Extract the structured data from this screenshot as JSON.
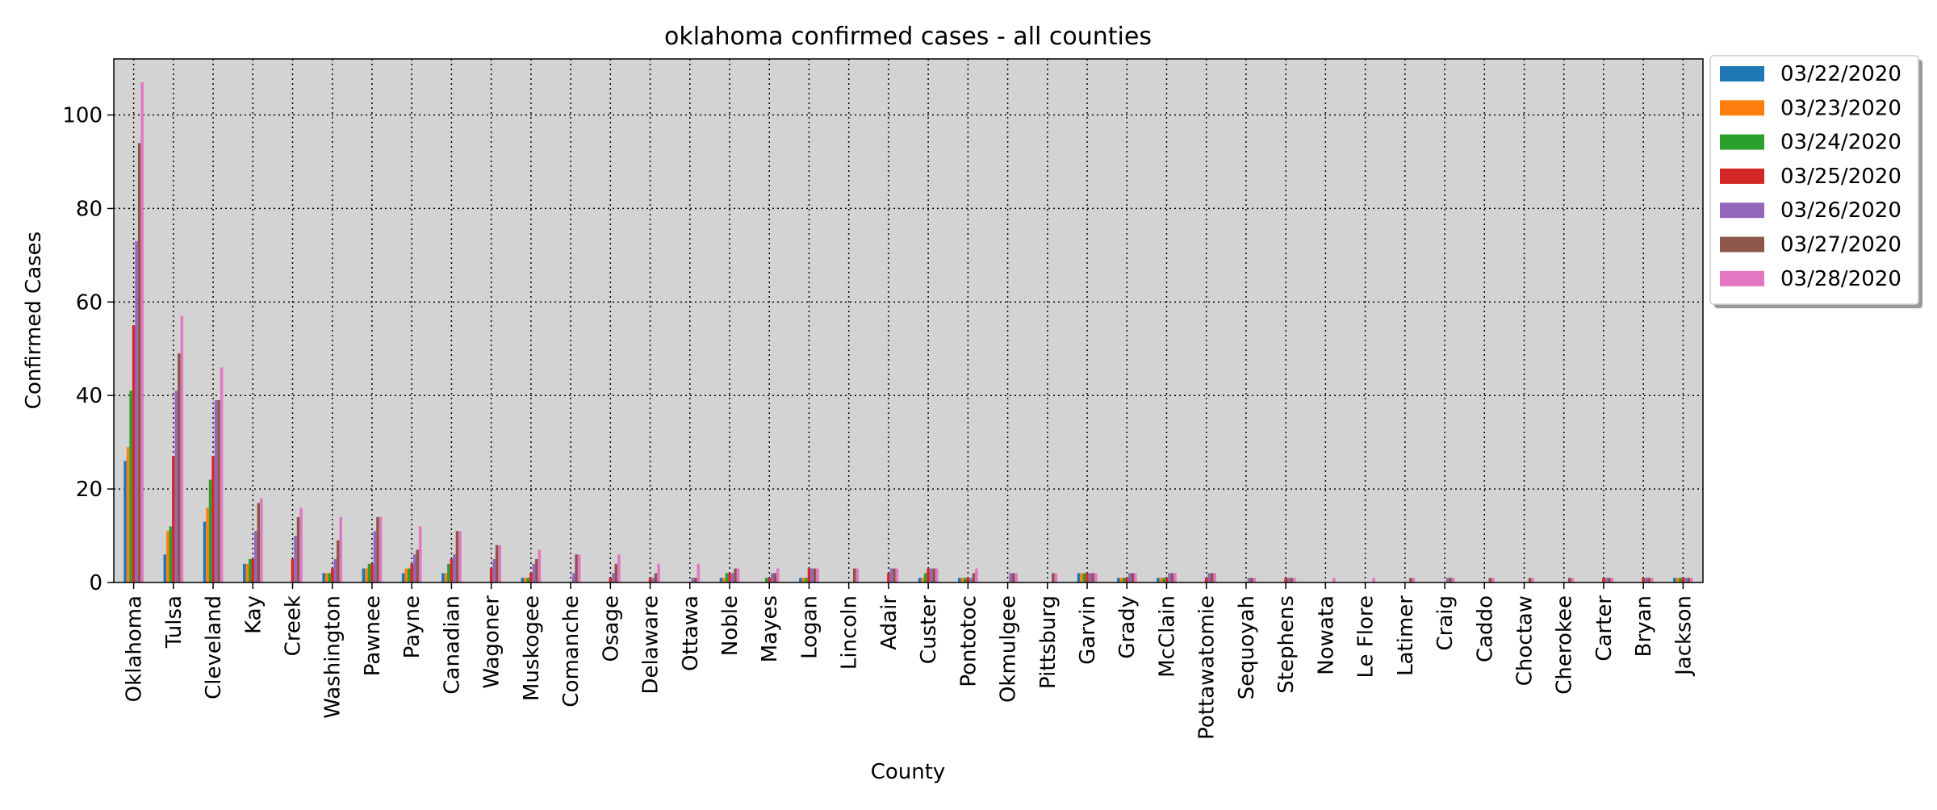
{
  "chart_data": {
    "type": "bar",
    "title": "oklahoma confirmed cases - all counties",
    "xlabel": "County",
    "ylabel": "Confirmed Cases",
    "ylim": [
      0,
      112
    ],
    "yticks": [
      0,
      20,
      40,
      60,
      80,
      100
    ],
    "grid": true,
    "legend_position": "outside-top-right",
    "categories": [
      "Oklahoma",
      "Tulsa",
      "Cleveland",
      "Kay",
      "Creek",
      "Washington",
      "Pawnee",
      "Payne",
      "Canadian",
      "Wagoner",
      "Muskogee",
      "Comanche",
      "Osage",
      "Delaware",
      "Ottawa",
      "Noble",
      "Mayes",
      "Logan",
      "Lincoln",
      "Adair",
      "Custer",
      "Pontotoc",
      "Okmulgee",
      "Pittsburg",
      "Garvin",
      "Grady",
      "McClain",
      "Pottawatomie",
      "Sequoyah",
      "Stephens",
      "Nowata",
      "Le Flore",
      "Latimer",
      "Craig",
      "Caddo",
      "Choctaw",
      "Cherokee",
      "Carter",
      "Bryan",
      "Jackson"
    ],
    "series": [
      {
        "name": "03/22/2020",
        "color": "#1f77b4",
        "values": [
          26,
          6,
          13,
          4,
          0,
          2,
          3,
          2,
          2,
          0,
          1,
          0,
          0,
          0,
          0,
          1,
          0,
          1,
          0,
          0,
          1,
          1,
          0,
          0,
          2,
          1,
          1,
          0,
          0,
          0,
          0,
          0,
          0,
          0,
          0,
          0,
          0,
          0,
          0,
          1
        ]
      },
      {
        "name": "03/23/2020",
        "color": "#ff7f0e",
        "values": [
          29,
          11,
          16,
          4,
          0,
          2,
          3,
          3,
          2,
          0,
          1,
          0,
          0,
          0,
          0,
          1,
          0,
          1,
          0,
          0,
          1,
          1,
          0,
          0,
          2,
          1,
          1,
          0,
          0,
          0,
          0,
          0,
          0,
          0,
          0,
          0,
          0,
          0,
          0,
          1
        ]
      },
      {
        "name": "03/24/2020",
        "color": "#2ca02c",
        "values": [
          41,
          12,
          22,
          5,
          0,
          2,
          4,
          3,
          4,
          0,
          1,
          0,
          0,
          0,
          0,
          2,
          1,
          1,
          0,
          0,
          2,
          1,
          0,
          0,
          2,
          1,
          1,
          0,
          0,
          0,
          0,
          0,
          0,
          0,
          0,
          0,
          0,
          0,
          0,
          1
        ]
      },
      {
        "name": "03/25/2020",
        "color": "#d62728",
        "values": [
          55,
          27,
          27,
          5,
          5,
          3,
          4,
          4,
          5,
          3,
          2,
          0,
          1,
          1,
          0,
          2,
          1,
          3,
          0,
          2,
          3,
          1,
          0,
          0,
          2,
          1,
          1,
          1,
          0,
          1,
          0,
          0,
          0,
          0,
          0,
          0,
          0,
          1,
          1,
          1
        ]
      },
      {
        "name": "03/26/2020",
        "color": "#9467bd",
        "values": [
          73,
          41,
          39,
          11,
          10,
          5,
          11,
          6,
          6,
          5,
          4,
          2,
          2,
          1,
          1,
          2,
          2,
          3,
          0,
          3,
          3,
          1,
          2,
          0,
          2,
          2,
          2,
          2,
          1,
          1,
          0,
          0,
          0,
          1,
          0,
          0,
          0,
          1,
          1,
          1
        ]
      },
      {
        "name": "03/27/2020",
        "color": "#8c564b",
        "values": [
          94,
          49,
          39,
          17,
          14,
          9,
          14,
          7,
          11,
          8,
          5,
          6,
          4,
          2,
          1,
          3,
          2,
          3,
          3,
          3,
          3,
          2,
          2,
          2,
          2,
          2,
          2,
          2,
          1,
          1,
          0,
          0,
          1,
          1,
          1,
          1,
          1,
          1,
          1,
          1
        ]
      },
      {
        "name": "03/28/2020",
        "color": "#e377c2",
        "values": [
          107,
          57,
          46,
          18,
          16,
          14,
          14,
          12,
          11,
          8,
          7,
          6,
          6,
          4,
          4,
          3,
          3,
          3,
          3,
          3,
          3,
          3,
          2,
          2,
          2,
          2,
          2,
          2,
          1,
          1,
          1,
          1,
          1,
          1,
          1,
          1,
          1,
          1,
          1,
          1
        ]
      }
    ]
  }
}
